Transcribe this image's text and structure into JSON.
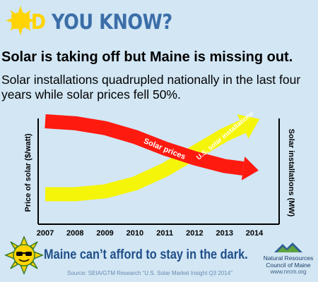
{
  "banner": {
    "word1": "DID",
    "word2": "YOU KNOW?"
  },
  "headline": "Solar is taking off but Maine is missing out.",
  "subhead": "Solar installations quadrupled nationally in the last four years while solar prices fell 50%.",
  "chart_data": {
    "type": "line",
    "x": [
      2007,
      2008,
      2009,
      2010,
      2011,
      2012,
      2013,
      2014
    ],
    "tick_labels": [
      "2007",
      "2008",
      "2009",
      "2010",
      "2011",
      "2012",
      "2013",
      "2014"
    ],
    "ylabel_left": "Price of solar ($/watt)",
    "ylabel_right": "Solar installations (MW)",
    "series": [
      {
        "name": "Solar prices",
        "axis": "left",
        "color": "#ff1a10",
        "values": [
          1.0,
          0.98,
          0.93,
          0.84,
          0.72,
          0.62,
          0.54,
          0.5
        ]
      },
      {
        "name": "U.S. solar installations",
        "axis": "right",
        "color": "#f5f50a",
        "values": [
          0.25,
          0.25,
          0.28,
          0.36,
          0.5,
          0.68,
          0.86,
          1.0
        ]
      }
    ],
    "grid": false,
    "legend": "none"
  },
  "footer": {
    "tagline": "Maine can’t afford to stay in the dark.",
    "source": "Source: SEIA/GTM Research “U.S. Solar Market Insight Q3 2014”"
  },
  "org": {
    "line1": "Natural Resources",
    "line2": "Council of Maine",
    "url": "www.nrcm.org"
  },
  "colors": {
    "background": "#d2e6f4",
    "accent_yellow": "#ffd400",
    "accent_blue": "#3b6ea8",
    "tagline_blue": "#1f4f8a"
  }
}
